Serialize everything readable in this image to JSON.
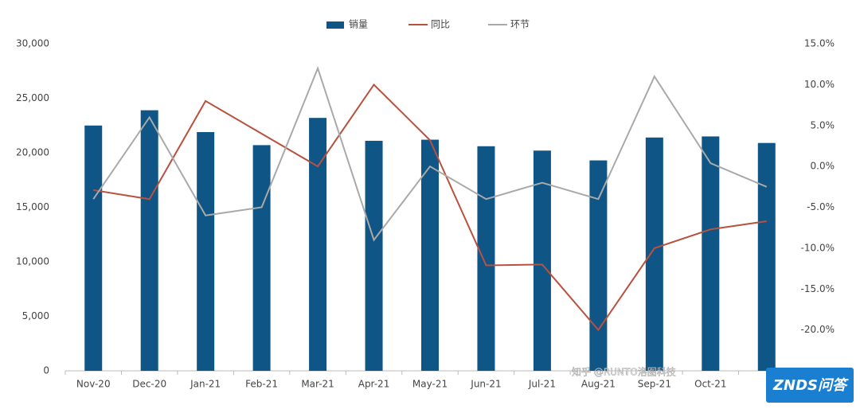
{
  "chart_data": {
    "type": "bar-line",
    "categories": [
      "Nov-20",
      "Dec-20",
      "Jan-21",
      "Feb-21",
      "Mar-21",
      "Apr-21",
      "May-21",
      "Jun-21",
      "Jul-21",
      "Aug-21",
      "Sep-21",
      "Oct-21",
      null
    ],
    "series": [
      {
        "name": "销量",
        "type": "bar",
        "color": "#0f5586",
        "values": [
          22500,
          23900,
          21900,
          20700,
          23200,
          21100,
          21200,
          20600,
          20200,
          19300,
          21400,
          21500,
          20900
        ]
      },
      {
        "name": "同比",
        "type": "line",
        "axis": "y2",
        "color": "#b9513f",
        "values": [
          -2.9,
          -4.0,
          8.0,
          4.0,
          0.0,
          10.0,
          3.2,
          -12.1,
          -12.0,
          -20.0,
          -10.0,
          -7.7,
          -6.7
        ]
      },
      {
        "name": "环节",
        "type": "line",
        "axis": "y2",
        "color": "#a9a9a9",
        "values": [
          -4.0,
          6.0,
          -6.0,
          -5.0,
          12.0,
          -9.0,
          0.0,
          -4.0,
          -2.0,
          -4.0,
          11.0,
          0.4,
          -2.5
        ]
      }
    ],
    "ylim": [
      0,
      30000
    ],
    "yticks": [
      0,
      {
        "value": 5000,
        "label": "5,000"
      },
      {
        "value": 10000,
        "label": "10,000"
      },
      {
        "value": 15000,
        "label": "15,000"
      },
      {
        "value": 20000,
        "label": "20,000"
      },
      {
        "value": 25000,
        "label": "25,000"
      },
      {
        "value": 30000,
        "label": "30,000"
      }
    ],
    "y2lim": [
      -25,
      15
    ],
    "y2ticks": [
      {
        "value": -20,
        "label": "-20.0%"
      },
      {
        "value": -15,
        "label": "-15.0%"
      },
      {
        "value": -10,
        "label": "-10.0%"
      },
      {
        "value": -5,
        "label": "-5.0%"
      },
      {
        "value": 0,
        "label": "0.0%"
      },
      {
        "value": 5,
        "label": "5.0%"
      },
      {
        "value": 10,
        "label": "10.0%"
      },
      {
        "value": 15,
        "label": "15.0%"
      }
    ],
    "legend": "top",
    "annotations": [
      "知乎 @RUNTO洛图科技",
      "ZNDS问答"
    ]
  }
}
